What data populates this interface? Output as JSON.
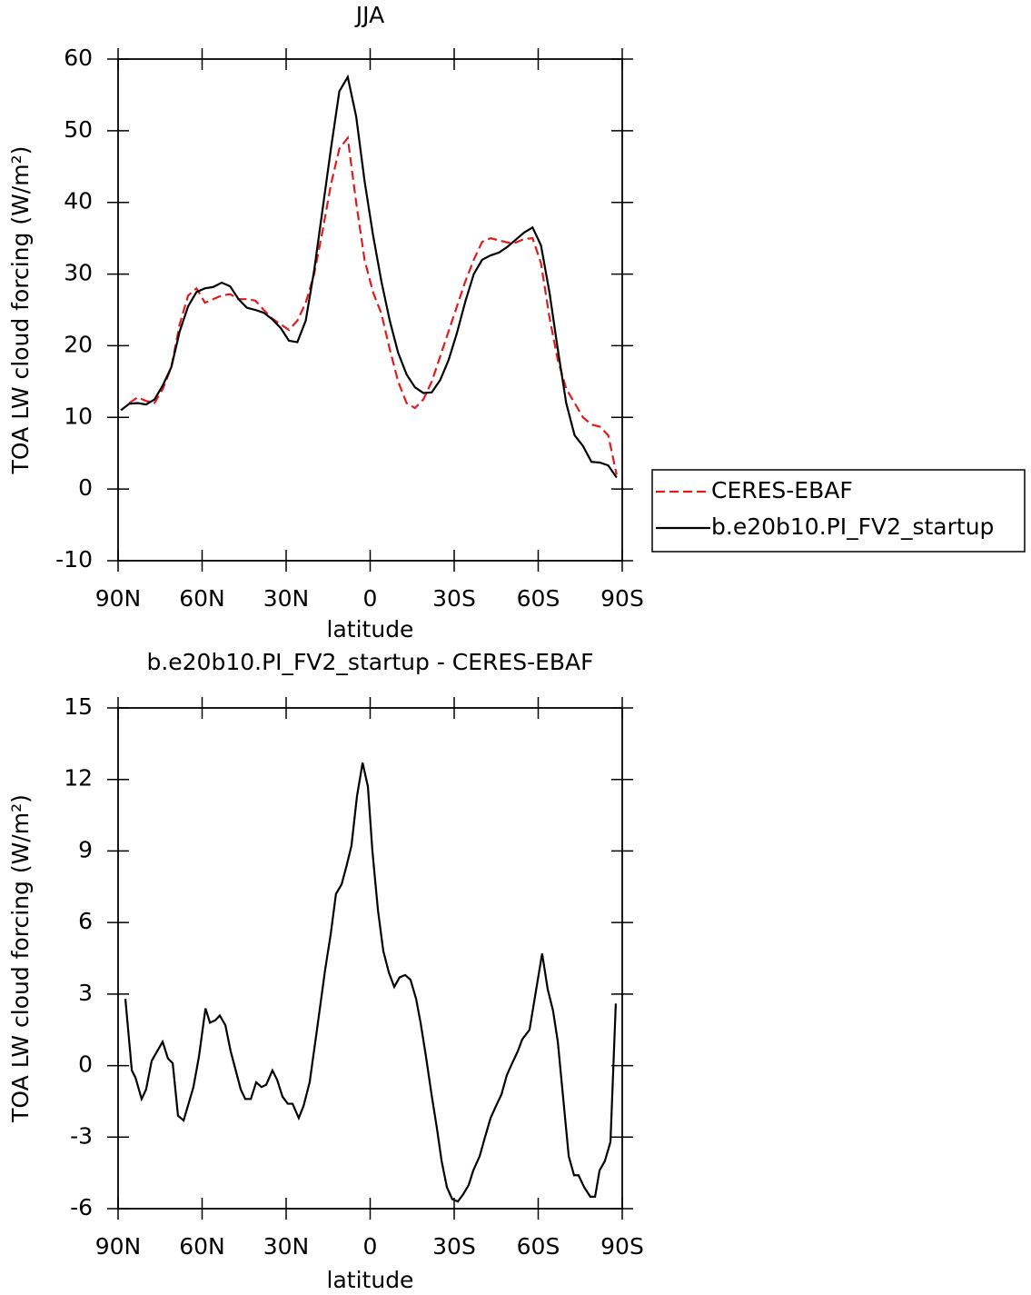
{
  "chart_data": [
    {
      "type": "line",
      "title": "JJA",
      "x_label": "latitude",
      "y_label": "TOA LW cloud forcing (W/m²)",
      "x": [
        89,
        86,
        83,
        80,
        77,
        74,
        71,
        68,
        65,
        62,
        59,
        56,
        53,
        50,
        47,
        44,
        41,
        38,
        35,
        32,
        29,
        26,
        23,
        20,
        17,
        14,
        11,
        8,
        5,
        2,
        -1,
        -4,
        -7,
        -10,
        -13,
        -16,
        -19,
        -22,
        -25,
        -28,
        -31,
        -34,
        -37,
        -40,
        -43,
        -46,
        -49,
        -52,
        -55,
        -58,
        -61,
        -64,
        -67,
        -70,
        -73,
        -76,
        -79,
        -82,
        -85,
        -88
      ],
      "series": [
        {
          "name": "CERES-EBAF",
          "color": "#e31a1c",
          "style": "dashed",
          "values": [
            null,
            12,
            12.8,
            12.3,
            12,
            14,
            17,
            23,
            27,
            28,
            26,
            26.5,
            27,
            27.2,
            26.5,
            26.5,
            26.3,
            25,
            23.8,
            23,
            22.2,
            23.5,
            26,
            30,
            36,
            42.5,
            47.5,
            49,
            40,
            32,
            27.5,
            24.5,
            19.5,
            15,
            12,
            11.3,
            12.5,
            15,
            18.5,
            22,
            25.5,
            29,
            32,
            34.5,
            35,
            34.7,
            34.4,
            34.4,
            34.9,
            35,
            31.5,
            24,
            18,
            14,
            12,
            10,
            9,
            8.7,
            7.5,
            2
          ]
        },
        {
          "name": "b.e20b10.PI_FV2_startup",
          "color": "#000000",
          "style": "solid",
          "values": [
            11,
            11.9,
            12,
            11.8,
            12.5,
            14.5,
            17,
            22,
            25.5,
            27.5,
            28,
            28.2,
            28.8,
            28.3,
            26.5,
            25.3,
            25,
            24.6,
            23.7,
            22.5,
            20.7,
            20.5,
            23.5,
            30.5,
            39,
            47.5,
            55.5,
            57.5,
            52,
            43,
            35.5,
            29,
            23.5,
            19,
            16,
            14.2,
            13.4,
            13.5,
            15.2,
            18,
            21.8,
            26.2,
            30,
            32,
            32.6,
            33,
            33.8,
            34.8,
            35.8,
            36.5,
            34,
            27.5,
            19.5,
            12,
            7.5,
            6,
            3.8,
            3.7,
            3.3,
            1.6
          ]
        }
      ],
      "xlim": [
        90,
        -90
      ],
      "xticks": [
        {
          "value": 90,
          "label": "90N"
        },
        {
          "value": 60,
          "label": "60N"
        },
        {
          "value": 30,
          "label": "30N"
        },
        0,
        {
          "value": -30,
          "label": "30S"
        },
        {
          "value": -60,
          "label": "60S"
        },
        {
          "value": -90,
          "label": "90S"
        }
      ],
      "ylim": [
        -10,
        60
      ],
      "yticks": [
        -10,
        0,
        10,
        20,
        30,
        40,
        50,
        60
      ],
      "legend": "right"
    },
    {
      "type": "line",
      "title": "b.e20b10.PI_FV2_startup - CERES-EBAF",
      "x_label": "latitude",
      "y_label": "TOA LW cloud forcing (W/m²)",
      "x": [
        87.4,
        85.1,
        83.8,
        81.6,
        80,
        78,
        74.1,
        72.2,
        70.5,
        68.6,
        66.6,
        63.1,
        61.1,
        58.8,
        57.2,
        55.3,
        53.7,
        51.7,
        49.8,
        46.2,
        44.6,
        42.6,
        40.7,
        38.8,
        37.1,
        34.9,
        33.2,
        31.3,
        29.4,
        27.7,
        25.5,
        23.8,
        21.6,
        19,
        16.1,
        14.1,
        12.2,
        10.2,
        8.6,
        6.7,
        4.7,
        2.7,
        0.8,
        -0.8,
        -2.8,
        -4.7,
        -6.7,
        -8.6,
        -10.5,
        -12.5,
        -14.4,
        -16.4,
        -18,
        -19.9,
        -21.9,
        -23.8,
        -25.5,
        -27.4,
        -29.3,
        -31.3,
        -33.2,
        -35.2,
        -36.8,
        -39.1,
        -41,
        -43,
        -44.9,
        -46.9,
        -48.8,
        -50.7,
        -52.7,
        -54.3,
        -56.9,
        -61.4,
        -63.4,
        -65.3,
        -67,
        -70.9,
        -72.8,
        -74.4,
        -76.4,
        -78.6,
        -80.3,
        -81.9,
        -83.8,
        -85.8,
        -87.7
      ],
      "values": [
        2.8,
        -0.2,
        -0.5,
        -1.4,
        -1,
        0.2,
        1,
        0.3,
        0.1,
        -2.1,
        -2.3,
        -0.9,
        0.4,
        2.4,
        1.8,
        1.9,
        2.1,
        1.7,
        0.6,
        -1,
        -1.4,
        -1.4,
        -0.7,
        -0.9,
        -0.8,
        -0.2,
        -0.6,
        -1.3,
        -1.6,
        -1.6,
        -2.2,
        -1.7,
        -0.7,
        1.5,
        4,
        5.5,
        7.2,
        7.6,
        8.3,
        9.2,
        11.3,
        12.7,
        11.7,
        9,
        6.5,
        4.8,
        3.9,
        3.3,
        3.7,
        3.8,
        3.6,
        2.8,
        1.8,
        0.4,
        -1.2,
        -2.6,
        -4,
        -5.1,
        -5.6,
        -5.7,
        -5.4,
        -5,
        -4.4,
        -3.8,
        -3,
        -2.2,
        -1.7,
        -1.2,
        -0.4,
        0.1,
        0.6,
        1.1,
        1.5,
        4.7,
        3.2,
        2.3,
        1,
        -3.8,
        -4.6,
        -4.6,
        -5.1,
        -5.5,
        -5.5,
        -4.4,
        -4,
        -3.2,
        2.6
      ],
      "color": "#000000",
      "xlim": [
        90,
        -90
      ],
      "xticks": [
        {
          "value": 90,
          "label": "90N"
        },
        {
          "value": 60,
          "label": "60N"
        },
        {
          "value": 30,
          "label": "30N"
        },
        0,
        {
          "value": -30,
          "label": "30S"
        },
        {
          "value": -60,
          "label": "60S"
        },
        {
          "value": -90,
          "label": "90S"
        }
      ],
      "ylim": [
        -6,
        15
      ],
      "yticks": [
        -6,
        -3,
        0,
        3,
        6,
        9,
        12,
        15
      ]
    }
  ]
}
